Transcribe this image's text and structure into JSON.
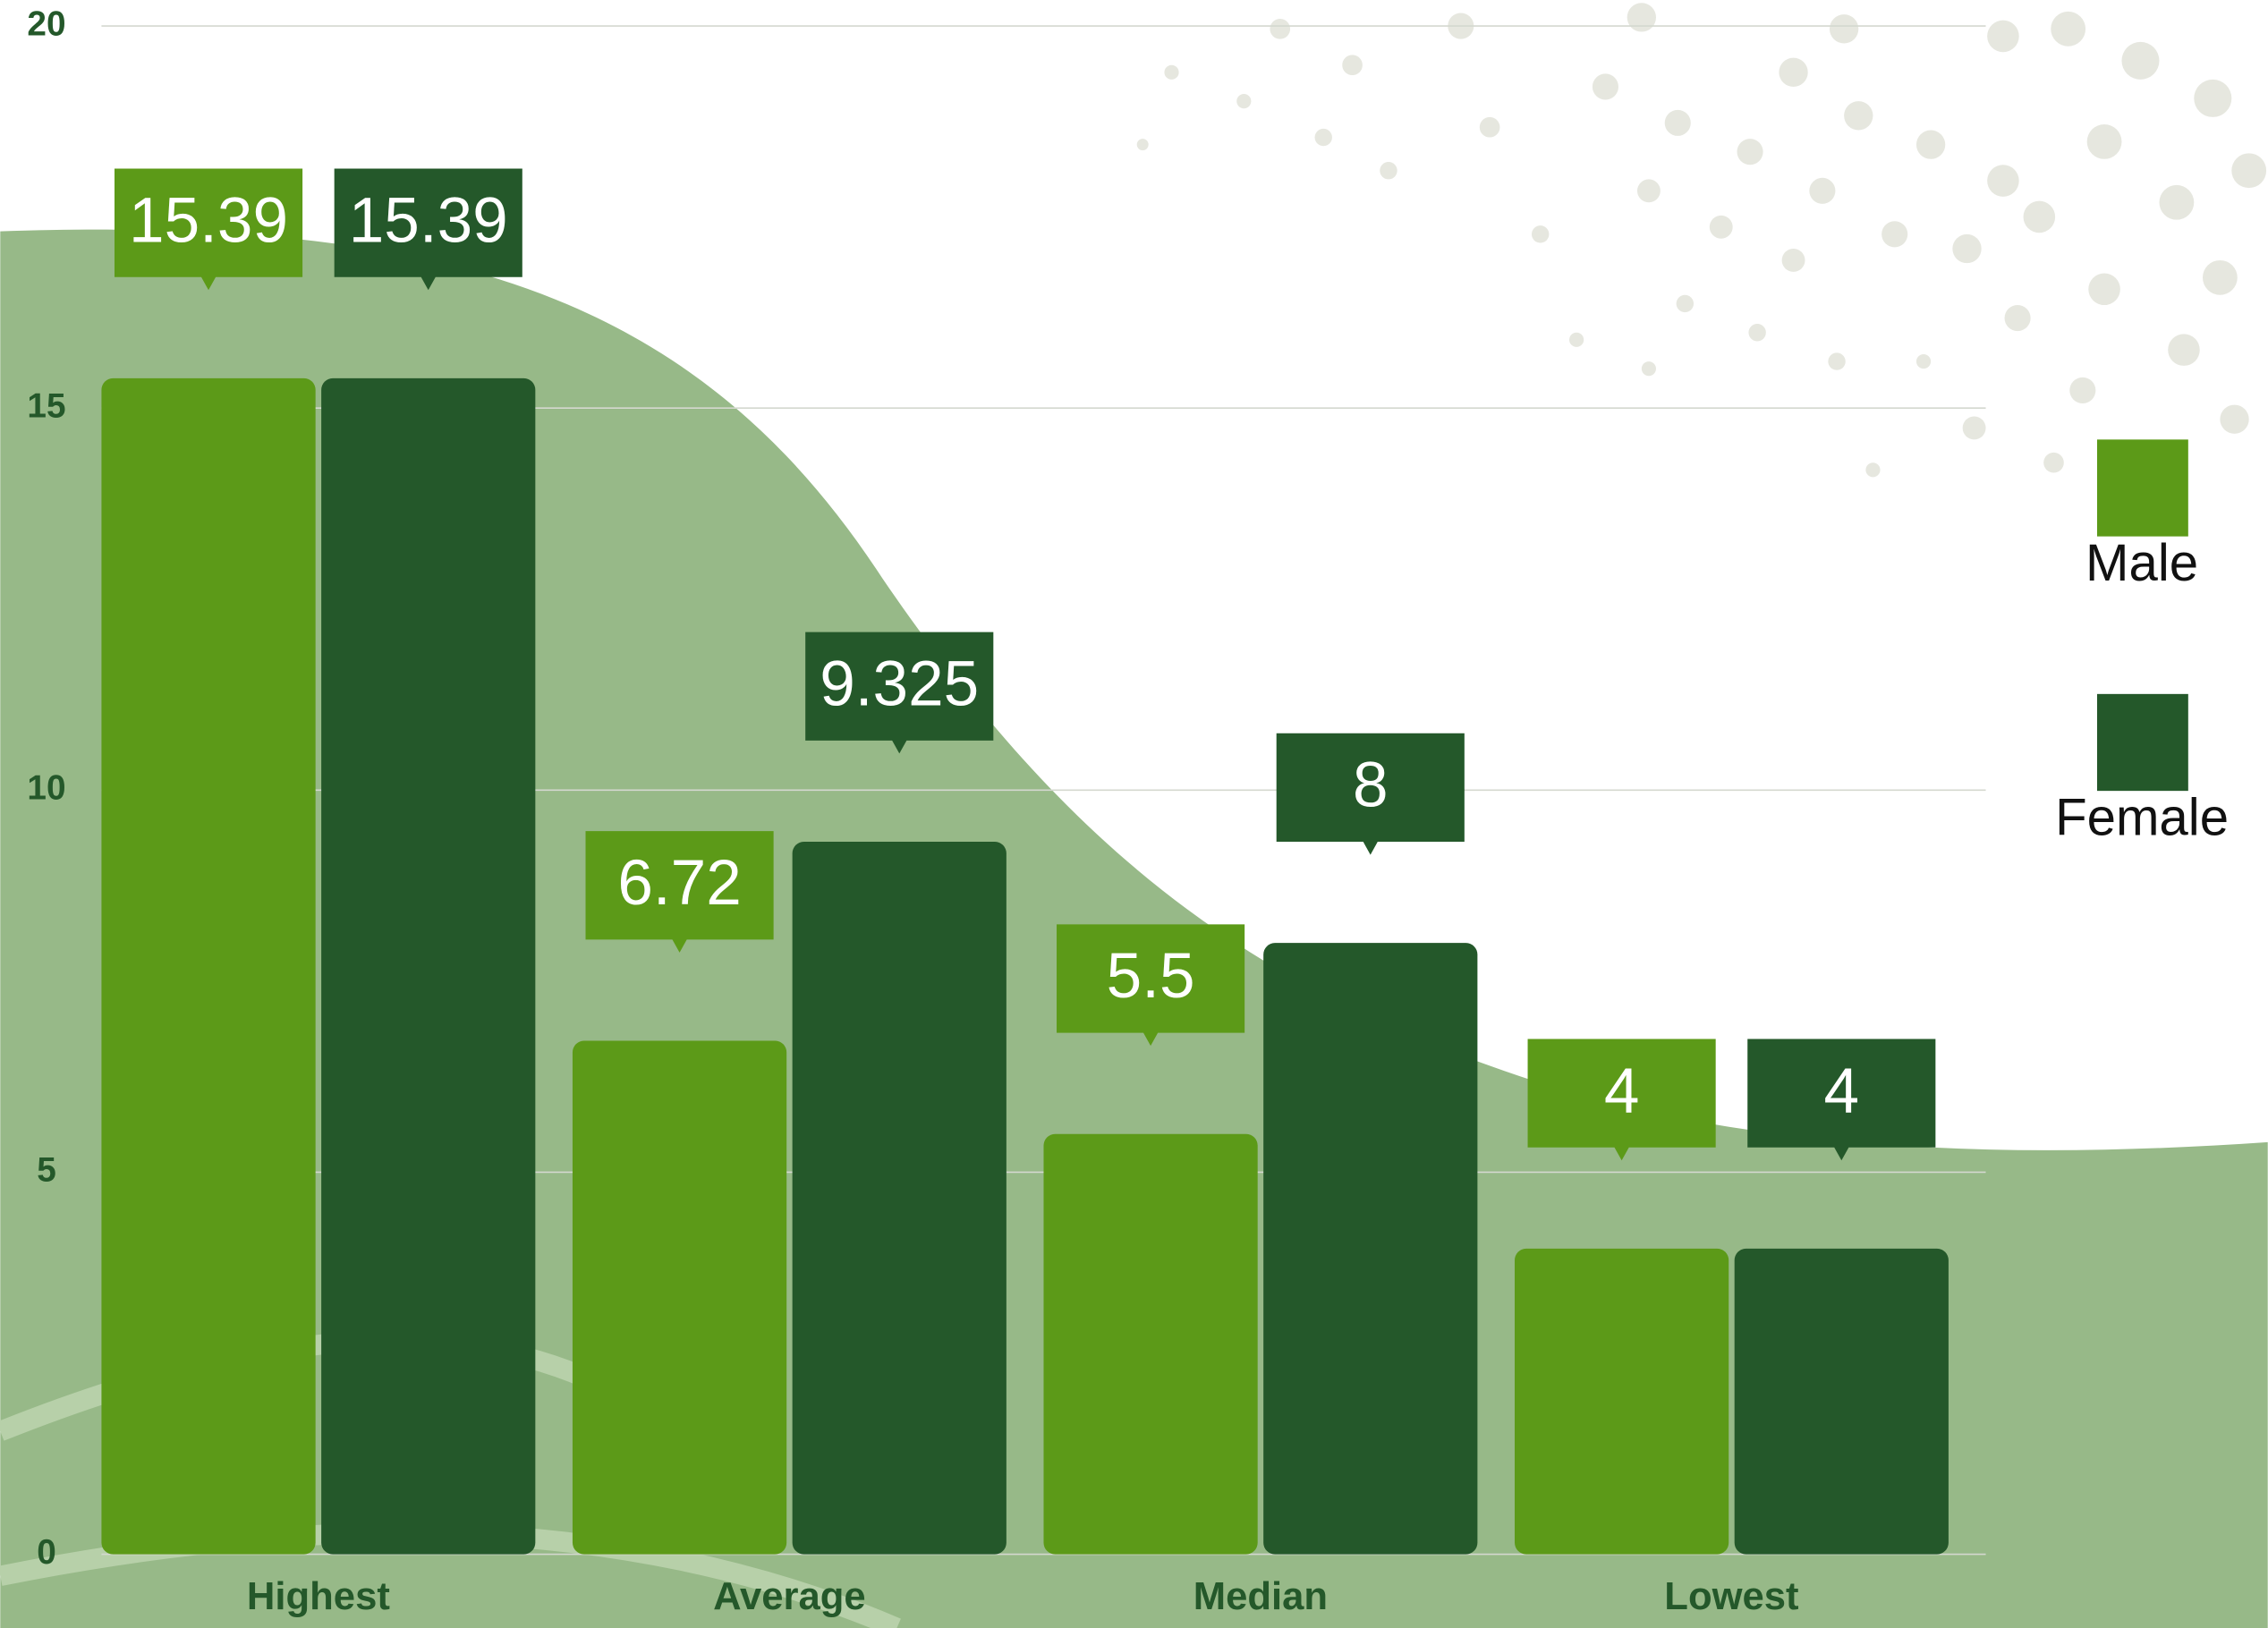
{
  "chart_data": {
    "type": "bar",
    "categories": [
      "Highest",
      "Average",
      "Median",
      "Lowest"
    ],
    "series": [
      {
        "name": "Male",
        "color": "#5c9a18",
        "values": [
          15.39,
          6.72,
          5.5,
          4
        ]
      },
      {
        "name": "Female",
        "color": "#24582a",
        "values": [
          15.39,
          9.325,
          8,
          4
        ]
      }
    ],
    "ylim": [
      0,
      20
    ],
    "yticks": [
      0,
      5,
      10,
      15,
      20
    ],
    "grid": true,
    "legend": "right"
  }
}
